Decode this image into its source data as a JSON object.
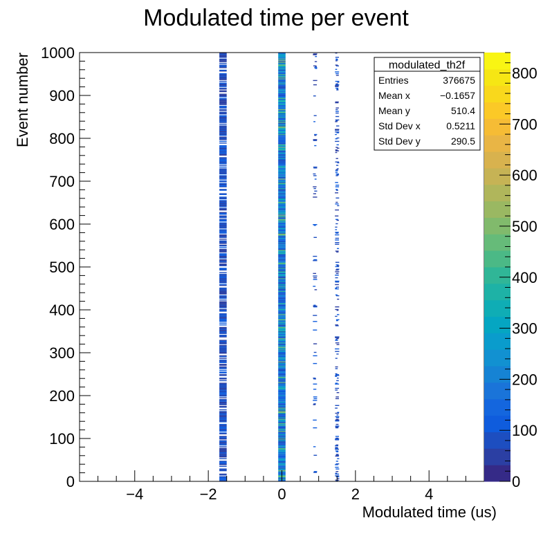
{
  "chart_data": {
    "type": "heatmap",
    "title": "Modulated time per event",
    "xlabel": "Modulated time (us)",
    "ylabel": "Event number",
    "xlim": [
      -5.5,
      5.5
    ],
    "ylim": [
      0,
      1000
    ],
    "x_ticks": [
      -4,
      -2,
      0,
      2,
      4
    ],
    "x_tick_labels": [
      "−4",
      "−2",
      "0",
      "2",
      "4"
    ],
    "y_ticks": [
      0,
      100,
      200,
      300,
      400,
      500,
      600,
      700,
      800,
      900,
      1000
    ],
    "y_tick_labels": [
      "0",
      "100",
      "200",
      "300",
      "400",
      "500",
      "600",
      "700",
      "800",
      "900",
      "1000"
    ],
    "z_range": [
      0,
      840
    ],
    "z_ticks": [
      0,
      100,
      200,
      300,
      400,
      500,
      600,
      700,
      800
    ],
    "z_tick_labels": [
      "0",
      "100",
      "200",
      "300",
      "400",
      "500",
      "600",
      "700",
      "800"
    ],
    "palette": [
      "#352a87",
      "#2b3fa3",
      "#1d4ec0",
      "#0f5cdd",
      "#1466de",
      "#1a74d9",
      "#1683d4",
      "#1291d1",
      "#0a9ccc",
      "#05a6c2",
      "#0fadb5",
      "#1eb2a6",
      "#30b697",
      "#4bb986",
      "#66bb79",
      "#81ba6c",
      "#9ab862",
      "#b0b65b",
      "#c6b355",
      "#d8b24e",
      "#e9b545",
      "#f6bc35",
      "#fbc927",
      "#f9d81c",
      "#f6e614",
      "#f9f513"
    ],
    "bands": [
      {
        "x_center": -1.6,
        "width": 0.2,
        "count_level": "low",
        "occupancy": "dense"
      },
      {
        "x_center": 0.0,
        "width": 0.2,
        "count_level": "high",
        "occupancy": "full"
      },
      {
        "x_center": 0.9,
        "width": 0.12,
        "count_level": "low",
        "occupancy": "sparse"
      },
      {
        "x_center": 1.5,
        "width": 0.12,
        "count_level": "low",
        "occupancy": "medium"
      }
    ],
    "stats": {
      "name": "modulated_th2f",
      "rows": [
        {
          "label": "Entries",
          "value": "376675"
        },
        {
          "label": "Mean x",
          "value": "−0.1657"
        },
        {
          "label": "Mean y",
          "value": "510.4"
        },
        {
          "label": "Std Dev x",
          "value": "0.5211"
        },
        {
          "label": "Std Dev y",
          "value": "290.5"
        }
      ]
    }
  }
}
